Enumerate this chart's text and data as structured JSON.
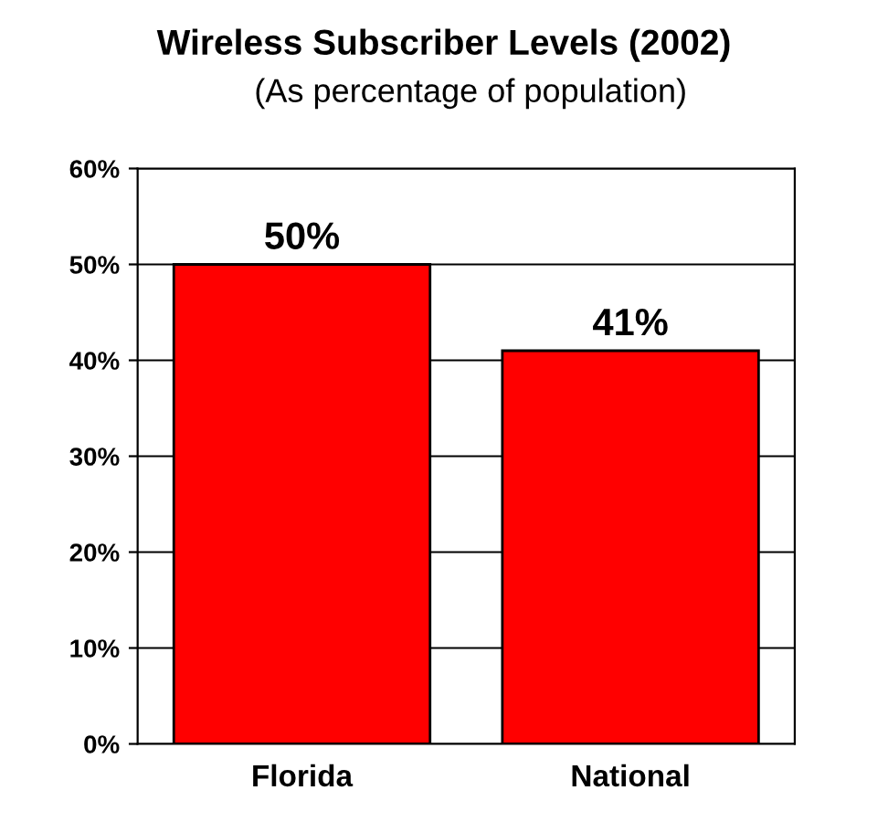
{
  "chart_data": {
    "type": "bar",
    "title": "Wireless Subscriber Levels (2002)",
    "subtitle": "(As percentage of population)",
    "categories": [
      "Florida",
      "National"
    ],
    "values": [
      50,
      41
    ],
    "value_labels": [
      "50%",
      "41%"
    ],
    "color": "#ff0000",
    "ylim": [
      0,
      60
    ],
    "yticks": [
      {
        "value": 0,
        "label": "0%"
      },
      {
        "value": 10,
        "label": "10%"
      },
      {
        "value": 20,
        "label": "20%"
      },
      {
        "value": 30,
        "label": "30%"
      },
      {
        "value": 40,
        "label": "40%"
      },
      {
        "value": 50,
        "label": "50%"
      },
      {
        "value": 60,
        "label": "60%"
      }
    ],
    "grid": "y",
    "legend": false
  }
}
